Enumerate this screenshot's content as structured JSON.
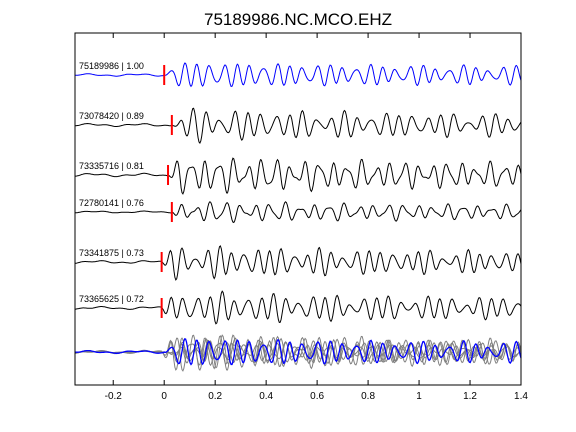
{
  "chart_data": {
    "type": "line",
    "title": "75189986.NC.MCO.EHZ",
    "xlabel": "",
    "ylabel": "",
    "xlim": [
      -0.35,
      1.4
    ],
    "x_ticks": [
      -0.2,
      0,
      0.2,
      0.4,
      0.6,
      0.8,
      1,
      1.2,
      1.4
    ],
    "x_tick_labels": [
      "-0.2",
      "0",
      "0.2",
      "0.4",
      "0.6",
      "0.8",
      "1",
      "1.2",
      "1.4"
    ],
    "grid": false,
    "legend": "none",
    "colors": {
      "reference": "#0000ff",
      "trace": "#000000",
      "pick": "#ff0000",
      "overlay": "#808080"
    },
    "series": [
      {
        "label": "75189986 | 1.00",
        "pick_time": 0.0,
        "amplitude": 13,
        "seed": 1
      },
      {
        "label": "73078420 | 0.89",
        "pick_time": 0.03,
        "amplitude": 15,
        "seed": 2
      },
      {
        "label": "73335716 | 0.81",
        "pick_time": 0.015,
        "amplitude": 17,
        "seed": 3
      },
      {
        "label": "72780141 | 0.76",
        "pick_time": 0.03,
        "amplitude": 10,
        "seed": 4
      },
      {
        "label": "73341875 | 0.73",
        "pick_time": -0.01,
        "amplitude": 15,
        "seed": 5
      },
      {
        "label": "73365625 | 0.72",
        "pick_time": -0.01,
        "amplitude": 15,
        "seed": 6
      }
    ],
    "overlay": {
      "type": "stacked-overlay",
      "reference_series": 0
    }
  }
}
